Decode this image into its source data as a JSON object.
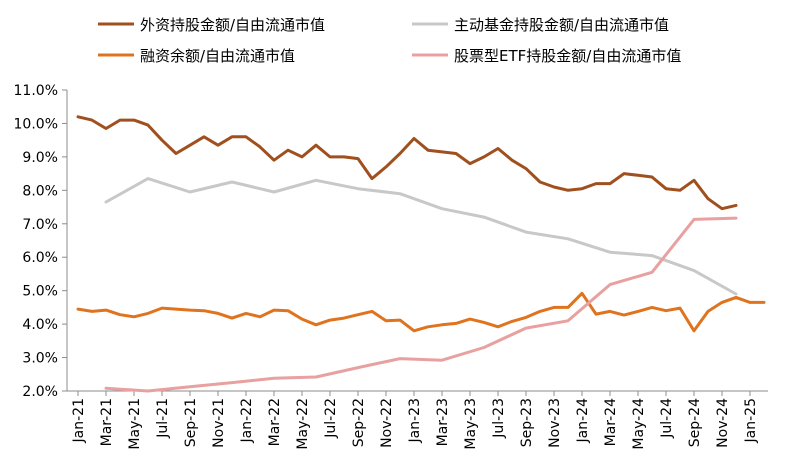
{
  "chart_data": {
    "type": "line",
    "title": "",
    "xlabel": "",
    "ylabel": "",
    "ylim": [
      2.0,
      11.0
    ],
    "yticks": [
      "11.0%",
      "10.0%",
      "9.0%",
      "8.0%",
      "7.0%",
      "6.0%",
      "5.0%",
      "4.0%",
      "3.0%",
      "2.0%"
    ],
    "grid": false,
    "legend_position": "top",
    "categories": [
      "Jan-21",
      "Feb-21",
      "Mar-21",
      "Apr-21",
      "May-21",
      "Jun-21",
      "Jul-21",
      "Aug-21",
      "Sep-21",
      "Oct-21",
      "Nov-21",
      "Dec-21",
      "Jan-22",
      "Feb-22",
      "Mar-22",
      "Apr-22",
      "May-22",
      "Jun-22",
      "Jul-22",
      "Aug-22",
      "Sep-22",
      "Oct-22",
      "Nov-22",
      "Dec-22",
      "Jan-23",
      "Feb-23",
      "Mar-23",
      "Apr-23",
      "May-23",
      "Jun-23",
      "Jul-23",
      "Aug-23",
      "Sep-23",
      "Oct-23",
      "Nov-23",
      "Dec-23",
      "Jan-24",
      "Feb-24",
      "Mar-24",
      "Apr-24",
      "May-24",
      "Jun-24",
      "Jul-24",
      "Aug-24",
      "Sep-24",
      "Oct-24",
      "Nov-24",
      "Dec-24",
      "Jan-25",
      "Feb-25"
    ],
    "x_tick_labels": [
      "Jan-21",
      "Mar-21",
      "May-21",
      "Jul-21",
      "Sep-21",
      "Nov-21",
      "Jan-22",
      "Mar-22",
      "May-22",
      "Jul-22",
      "Sep-22",
      "Nov-22",
      "Jan-23",
      "Mar-23",
      "May-23",
      "Jul-23",
      "Sep-23",
      "Nov-23",
      "Jan-24",
      "Mar-24",
      "May-24",
      "Jul-24",
      "Sep-24",
      "Nov-24",
      "Jan-25"
    ],
    "series": [
      {
        "name": "外资持股金额/自由流通市值",
        "color": "#A0501E",
        "values": [
          10.2,
          10.1,
          9.85,
          10.1,
          10.1,
          9.95,
          9.5,
          9.1,
          9.35,
          9.6,
          9.35,
          9.6,
          9.6,
          9.3,
          8.9,
          9.2,
          9.0,
          9.35,
          9.0,
          9.0,
          8.95,
          8.35,
          8.7,
          9.1,
          9.55,
          9.2,
          9.15,
          9.1,
          8.8,
          9.0,
          9.25,
          8.9,
          8.65,
          8.25,
          8.1,
          8.0,
          8.05,
          8.2,
          8.2,
          8.5,
          8.45,
          8.4,
          8.05,
          8.0,
          8.3,
          7.75,
          7.45,
          7.55,
          null,
          null
        ]
      },
      {
        "name": "主动基金持股金额/自由流通市值",
        "color": "#C8C8C8",
        "values": [
          null,
          null,
          7.65,
          null,
          null,
          8.35,
          null,
          null,
          7.95,
          null,
          null,
          8.25,
          null,
          null,
          7.95,
          null,
          null,
          8.3,
          null,
          null,
          8.05,
          null,
          null,
          7.9,
          null,
          null,
          7.45,
          null,
          null,
          7.2,
          null,
          null,
          6.75,
          null,
          null,
          6.55,
          null,
          null,
          6.15,
          null,
          null,
          6.05,
          null,
          null,
          5.6,
          null,
          null,
          4.9,
          null,
          null
        ]
      },
      {
        "name": "融资余额/自由流通市值",
        "color": "#E0731E",
        "values": [
          4.45,
          4.38,
          4.42,
          4.28,
          4.22,
          4.32,
          4.48,
          4.45,
          4.42,
          4.4,
          4.32,
          4.18,
          4.32,
          4.22,
          4.42,
          4.4,
          4.15,
          3.98,
          4.12,
          4.18,
          4.28,
          4.38,
          4.1,
          4.12,
          3.8,
          3.92,
          3.98,
          4.02,
          4.15,
          4.05,
          3.92,
          4.08,
          4.2,
          4.38,
          4.5,
          4.5,
          4.92,
          4.3,
          4.38,
          4.27,
          4.38,
          4.5,
          4.4,
          4.48,
          3.8,
          4.38,
          4.65,
          4.8,
          4.65,
          4.65
        ]
      },
      {
        "name": "股票型ETF持股金额/自由流通市值",
        "color": "#E8A0A0",
        "values": [
          null,
          null,
          2.08,
          null,
          null,
          2.0,
          null,
          null,
          2.13,
          null,
          null,
          2.25,
          null,
          null,
          2.38,
          null,
          null,
          2.42,
          null,
          null,
          2.7,
          null,
          null,
          2.97,
          null,
          null,
          2.92,
          null,
          null,
          3.3,
          null,
          null,
          3.88,
          null,
          null,
          4.1,
          null,
          null,
          5.18,
          null,
          null,
          5.55,
          null,
          null,
          7.13,
          null,
          null,
          7.17,
          null,
          null
        ]
      }
    ]
  }
}
